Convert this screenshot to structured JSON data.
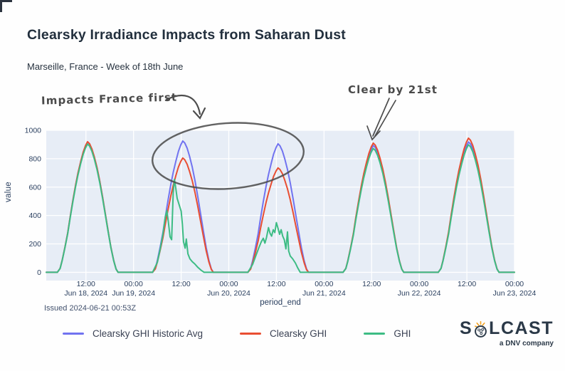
{
  "page": {
    "title": "Clearsky Irradiance Impacts from Saharan Dust",
    "subtitle": "Marseille, France - Week of 18th June"
  },
  "annotations": {
    "impacts_france": "Impacts France first",
    "clear_by": "Clear by 21st"
  },
  "footer": {
    "issued": "Issued 2024-06-21 00:53Z"
  },
  "legend": {
    "items": [
      {
        "label": "Clearsky GHI Historic Avg",
        "color": "#7173f0"
      },
      {
        "label": "Clearsky GHI",
        "color": "#e94e32"
      },
      {
        "label": "GHI",
        "color": "#3dbc84"
      }
    ]
  },
  "logo": {
    "text": "SOLCAST",
    "tagline": "a DNV company",
    "navy": "#2b3948",
    "orange": "#f6a21e"
  },
  "colors": {
    "plot_bg": "#e7edf6",
    "grid": "#ffffff",
    "tick_text": "#2a3f5f",
    "annotation": "#4d4d4d"
  },
  "chart_data": {
    "type": "line",
    "title": "Clearsky Irradiance Impacts from Saharan Dust",
    "xlabel": "period_end",
    "ylabel": "value",
    "x_unit": "hours after Jun 18, 2024 00:00",
    "xlim": [
      2,
      120
    ],
    "ylim": [
      -28,
      1000
    ],
    "grid": true,
    "legend_position": "bottom",
    "y_ticks": [
      0,
      200,
      400,
      600,
      800,
      1000
    ],
    "x_ticks": [
      {
        "h": 12,
        "time": "12:00",
        "date": "Jun 18, 2024"
      },
      {
        "h": 24,
        "time": "00:00",
        "date": "Jun 19, 2024"
      },
      {
        "h": 36,
        "time": "12:00",
        "date": ""
      },
      {
        "h": 48,
        "time": "00:00",
        "date": "Jun 20, 2024"
      },
      {
        "h": 60,
        "time": "12:00",
        "date": ""
      },
      {
        "h": 72,
        "time": "00:00",
        "date": "Jun 21, 2024"
      },
      {
        "h": 84,
        "time": "12:00",
        "date": ""
      },
      {
        "h": 96,
        "time": "00:00",
        "date": "Jun 22, 2024"
      },
      {
        "h": 108,
        "time": "12:00",
        "date": ""
      },
      {
        "h": 120,
        "time": "00:00",
        "date": "Jun 23, 2024"
      }
    ],
    "rel_hours": [
      4.8,
      5.5,
      6,
      6.7,
      7.4,
      8,
      8.7,
      9.4,
      10,
      10.7,
      11.3,
      11.9,
      12.4,
      12.9,
      13.5,
      14.1,
      14.8,
      15.5,
      16.2,
      16.9,
      17.6,
      18.3,
      19,
      19.6,
      20.1
    ],
    "series": [
      {
        "name": "Clearsky GHI Historic Avg",
        "color": "#7173f0",
        "days": [
          [
            0,
            28,
            83,
            174,
            275,
            386,
            505,
            615,
            698,
            780,
            845,
            890,
            918,
            904,
            868,
            812,
            734,
            638,
            528,
            409,
            289,
            174,
            83,
            23,
            0
          ],
          [
            0,
            28,
            83,
            176,
            278,
            389,
            509,
            620,
            703,
            786,
            851,
            897,
            925,
            911,
            874,
            819,
            740,
            643,
            532,
            412,
            291,
            176,
            83,
            23,
            0
          ],
          [
            0,
            27,
            81,
            172,
            272,
            380,
            498,
            606,
            688,
            769,
            833,
            878,
            905,
            891,
            855,
            801,
            724,
            629,
            520,
            403,
            285,
            172,
            81,
            23,
            0
          ],
          [
            0,
            27,
            80,
            170,
            268,
            375,
            491,
            598,
            679,
            759,
            822,
            866,
            893,
            880,
            844,
            790,
            714,
            621,
            513,
            397,
            281,
            170,
            80,
            22,
            0
          ],
          [
            0,
            28,
            83,
            174,
            275,
            386,
            505,
            615,
            698,
            780,
            845,
            890,
            918,
            904,
            868,
            812,
            734,
            638,
            528,
            409,
            289,
            174,
            83,
            23,
            0
          ]
        ]
      },
      {
        "name": "Clearsky GHI",
        "color": "#e94e32",
        "days": [
          [
            0,
            28,
            83,
            175,
            276,
            386,
            506,
            616,
            699,
            782,
            846,
            892,
            920,
            906,
            869,
            814,
            736,
            639,
            529,
            409,
            290,
            175,
            83,
            23,
            0
          ],
          [
            0,
            24,
            72,
            153,
            242,
            338,
            443,
            539,
            612,
            684,
            741,
            781,
            805,
            793,
            761,
            712,
            644,
            560,
            463,
            358,
            254,
            153,
            72,
            20,
            0
          ],
          [
            0,
            22,
            66,
            140,
            221,
            309,
            404,
            492,
            559,
            625,
            676,
            713,
            735,
            724,
            695,
            650,
            588,
            511,
            423,
            327,
            232,
            140,
            66,
            18,
            0
          ],
          [
            0,
            27,
            82,
            173,
            273,
            382,
            501,
            610,
            692,
            774,
            837,
            883,
            910,
            896,
            860,
            805,
            728,
            632,
            523,
            405,
            287,
            173,
            82,
            23,
            0
          ],
          [
            0,
            28,
            85,
            180,
            284,
            397,
            520,
            633,
            718,
            803,
            869,
            917,
            945,
            931,
            893,
            836,
            756,
            657,
            543,
            421,
            298,
            180,
            85,
            24,
            0
          ]
        ]
      },
      {
        "name": "GHI",
        "color": "#3dbc84",
        "days": [
          [
            0,
            27,
            81,
            172,
            271,
            379,
            497,
            605,
            686,
            768,
            831,
            876,
            903,
            889,
            853,
            799,
            722,
            628,
            519,
            402,
            284,
            172,
            81,
            23,
            0
          ],
          [
            [
              4.8,
              0
            ],
            [
              6,
              70
            ],
            [
              6.7,
              160
            ],
            [
              7.4,
              265
            ],
            [
              8,
              390
            ],
            [
              8.4,
              435
            ],
            [
              8.8,
              350
            ],
            [
              9.2,
              250
            ],
            [
              9.6,
              230
            ],
            [
              10,
              560
            ],
            [
              10.3,
              655
            ],
            [
              10.6,
              600
            ],
            [
              11,
              520
            ],
            [
              11.5,
              475
            ],
            [
              12,
              430
            ],
            [
              12.3,
              340
            ],
            [
              12.6,
              215
            ],
            [
              13,
              170
            ],
            [
              13.3,
              235
            ],
            [
              13.7,
              130
            ],
            [
              14.2,
              95
            ],
            [
              14.8,
              75
            ],
            [
              15.4,
              60
            ],
            [
              16.2,
              35
            ],
            [
              17,
              15
            ],
            [
              17.8,
              0
            ]
          ],
          [
            [
              4.8,
              0
            ],
            [
              6,
              55
            ],
            [
              7,
              130
            ],
            [
              7.6,
              175
            ],
            [
              8.2,
              215
            ],
            [
              8.7,
              240
            ],
            [
              9.1,
              205
            ],
            [
              9.5,
              245
            ],
            [
              10,
              315
            ],
            [
              10.4,
              275
            ],
            [
              10.8,
              255
            ],
            [
              11.2,
              300
            ],
            [
              11.6,
              280
            ],
            [
              12,
              350
            ],
            [
              12.4,
              310
            ],
            [
              12.8,
              268
            ],
            [
              13.2,
              300
            ],
            [
              13.6,
              255
            ],
            [
              14,
              228
            ],
            [
              14.4,
              165
            ],
            [
              14.8,
              285
            ],
            [
              15.1,
              150
            ],
            [
              15.5,
              115
            ],
            [
              16.1,
              95
            ],
            [
              16.8,
              65
            ],
            [
              17.4,
              30
            ],
            [
              18,
              0
            ]
          ],
          [
            0,
            26,
            78,
            166,
            262,
            366,
            480,
            584,
            663,
            741,
            802,
            846,
            872,
            859,
            824,
            772,
            698,
            606,
            501,
            388,
            275,
            166,
            78,
            22,
            0
          ],
          [
            0,
            27,
            81,
            171,
            269,
            377,
            494,
            602,
            682,
            763,
            826,
            871,
            898,
            884,
            849,
            795,
            718,
            624,
            516,
            400,
            283,
            171,
            81,
            22,
            0
          ]
        ]
      }
    ]
  }
}
